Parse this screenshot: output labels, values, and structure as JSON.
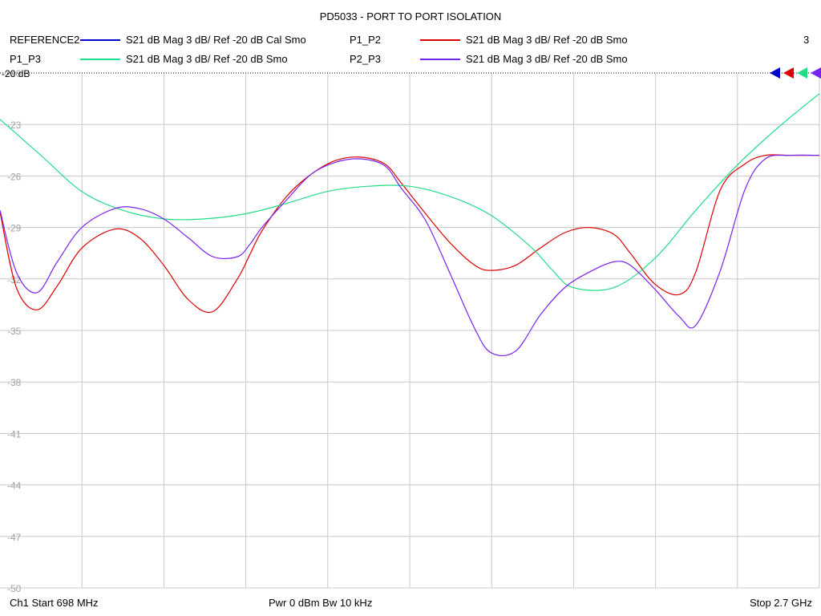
{
  "title": "PD5033 - PORT TO PORT ISOLATION",
  "legend": [
    {
      "name": "REFERENCE2",
      "desc": "S21  dB Mag  3 dB/ Ref -20 dB  Cal Smo",
      "color": "#0000cc"
    },
    {
      "name": "P1_P2",
      "desc": "S21  dB Mag  3 dB/ Ref -20 dB  Smo",
      "color": "#dd0000"
    },
    {
      "name": "P1_P3",
      "desc": "S21  dB Mag  3 dB/ Ref -20 dB  Smo",
      "color": "#22dd88"
    },
    {
      "name": "P2_P3",
      "desc": "S21  dB Mag  3 dB/ Ref -20 dB  Smo",
      "color": "#7722ee"
    }
  ],
  "trace_count": "3",
  "ref_label": "-20 dB",
  "footer": {
    "start": "Ch1  Start  698 MHz",
    "power": "Pwr  0 dBm  Bw  10 kHz",
    "stop": "Stop  2.7 GHz"
  },
  "chart_data": {
    "type": "line",
    "title": "PD5033 - PORT TO PORT ISOLATION",
    "xlim": [
      698,
      2700
    ],
    "x_unit": "MHz",
    "ylim": [
      -50,
      -20
    ],
    "yticks": [
      "-20",
      "-23",
      "-26",
      "-29",
      "-32",
      "-35",
      "-38",
      "-41",
      "-44",
      "-47",
      "-50"
    ],
    "ytick_values": [
      -20,
      -23,
      -26,
      -29,
      -32,
      -35,
      -38,
      -41,
      -44,
      -47,
      -50
    ],
    "xgrid_count": 10,
    "grid": true,
    "series": [
      {
        "name": "P1_P2",
        "color": "#dd0000",
        "x": [
          698,
          738,
          788,
          838,
          898,
          978,
          1038,
          1098,
          1158,
          1218,
          1278,
          1308,
          1338,
          1398,
          1458,
          1518,
          1578,
          1638,
          1678,
          1738,
          1798,
          1858,
          1898,
          1958,
          2018,
          2078,
          2138,
          2198,
          2238,
          2298,
          2358,
          2398,
          2458,
          2518,
          2568,
          2628,
          2700
        ],
        "y": [
          -28.1,
          -32.5,
          -33.8,
          -32.4,
          -30.2,
          -29.1,
          -29.6,
          -31.2,
          -33.2,
          -33.9,
          -32.0,
          -30.6,
          -29.2,
          -27.2,
          -25.9,
          -25.1,
          -24.9,
          -25.3,
          -26.4,
          -28.2,
          -29.9,
          -31.2,
          -31.5,
          -31.2,
          -30.2,
          -29.3,
          -29.0,
          -29.4,
          -30.5,
          -32.3,
          -32.9,
          -31.6,
          -26.8,
          -25.3,
          -24.8,
          -24.8,
          -24.8
        ]
      },
      {
        "name": "P1_P3",
        "color": "#22dd88",
        "x": [
          698,
          798,
          898,
          998,
          1098,
          1198,
          1298,
          1398,
          1498,
          1598,
          1698,
          1798,
          1898,
          1998,
          2048,
          2098,
          2198,
          2298,
          2398,
          2498,
          2598,
          2700
        ],
        "y": [
          -22.7,
          -24.8,
          -26.9,
          -28.0,
          -28.5,
          -28.5,
          -28.2,
          -27.6,
          -26.9,
          -26.6,
          -26.6,
          -27.2,
          -28.3,
          -30.2,
          -31.5,
          -32.5,
          -32.5,
          -30.8,
          -28.0,
          -25.4,
          -23.2,
          -21.2
        ]
      },
      {
        "name": "P2_P3",
        "color": "#7722ee",
        "x": [
          698,
          738,
          788,
          838,
          898,
          978,
          1038,
          1098,
          1158,
          1218,
          1278,
          1308,
          1338,
          1398,
          1458,
          1518,
          1578,
          1638,
          1678,
          1738,
          1798,
          1858,
          1898,
          1958,
          2018,
          2078,
          2138,
          2198,
          2238,
          2298,
          2358,
          2398,
          2458,
          2518,
          2568,
          2628,
          2700
        ],
        "y": [
          -28.0,
          -31.6,
          -32.8,
          -31.0,
          -29.0,
          -27.9,
          -27.9,
          -28.5,
          -29.6,
          -30.7,
          -30.7,
          -30.0,
          -29.0,
          -27.4,
          -25.9,
          -25.2,
          -25.0,
          -25.4,
          -26.7,
          -28.6,
          -31.7,
          -34.9,
          -36.3,
          -36.2,
          -34.1,
          -32.5,
          -31.6,
          -31.0,
          -31.2,
          -32.6,
          -34.2,
          -34.7,
          -31.5,
          -26.8,
          -25.0,
          -24.8,
          -24.8
        ]
      }
    ]
  }
}
